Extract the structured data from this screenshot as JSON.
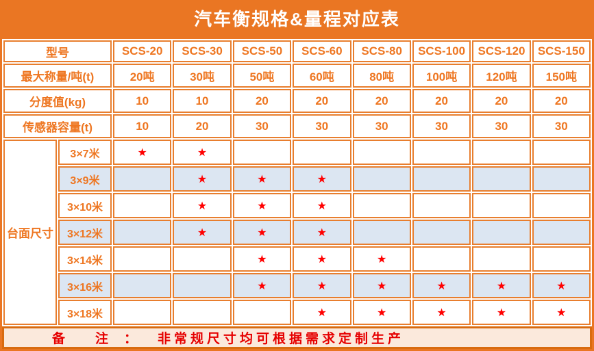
{
  "title": "汽车衡规格&量程对应表",
  "table": {
    "header": {
      "label": "型号",
      "models": [
        "SCS-20",
        "SCS-30",
        "SCS-50",
        "SCS-60",
        "SCS-80",
        "SCS-100",
        "SCS-120",
        "SCS-150"
      ]
    },
    "spec_rows": [
      {
        "label": "最大称量/吨(t)",
        "values": [
          "20吨",
          "30吨",
          "50吨",
          "60吨",
          "80吨",
          "100吨",
          "120吨",
          "150吨"
        ]
      },
      {
        "label": "分度值(kg)",
        "values": [
          "10",
          "10",
          "20",
          "20",
          "20",
          "20",
          "20",
          "20"
        ]
      },
      {
        "label": "传感器容量(t)",
        "values": [
          "10",
          "20",
          "30",
          "30",
          "30",
          "30",
          "30",
          "30"
        ]
      }
    ],
    "platform": {
      "label": "台面尺寸",
      "star_icon": "★",
      "rows": [
        {
          "label": "3×7米",
          "cells": [
            "★",
            "★",
            "",
            "",
            "",
            "",
            "",
            ""
          ]
        },
        {
          "label": "3×9米",
          "cells": [
            "",
            "★",
            "★",
            "★",
            "",
            "",
            "",
            ""
          ]
        },
        {
          "label": "3×10米",
          "cells": [
            "",
            "★",
            "★",
            "★",
            "",
            "",
            "",
            ""
          ]
        },
        {
          "label": "3×12米",
          "cells": [
            "",
            "★",
            "★",
            "★",
            "",
            "",
            "",
            ""
          ]
        },
        {
          "label": "3×14米",
          "cells": [
            "",
            "",
            "★",
            "★",
            "★",
            "",
            "",
            ""
          ]
        },
        {
          "label": "3×16米",
          "cells": [
            "",
            "",
            "★",
            "★",
            "★",
            "★",
            "★",
            "★"
          ]
        },
        {
          "label": "3×18米",
          "cells": [
            "",
            "",
            "",
            "★",
            "★",
            "★",
            "★",
            "★"
          ]
        }
      ]
    }
  },
  "note": {
    "label": "备　　注　：",
    "text": "非常规尺寸均可根据需求定制生产"
  },
  "colors": {
    "page_orange": "#EA7623",
    "cell_border": "#E87E2E",
    "text_orange": "#EE7621",
    "shaded_row_blue": "#DCE6F2",
    "star_red": "#FF0000",
    "note_background": "#FBE9DC",
    "note_border": "#D96B10",
    "note_text": "#E60000",
    "title_text": "#FFFFFF"
  }
}
